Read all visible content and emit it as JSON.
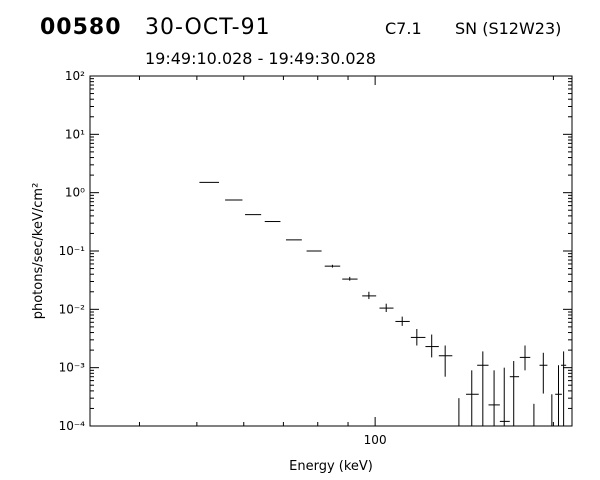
{
  "header": {
    "event_id": "00580",
    "date": "30-OCT-91",
    "goes_class": "C7.1",
    "location": "SN (S12W23)",
    "time_range": "19:49:10.028 - 19:49:30.028"
  },
  "chart_data": {
    "type": "scatter",
    "xlabel": "Energy (keV)",
    "ylabel": "photons/sec/keV/cm²",
    "xscale": "log",
    "yscale": "log",
    "xlim": [
      33,
      215
    ],
    "ylim": [
      0.0001,
      100
    ],
    "x_ticks": [
      {
        "value": 100,
        "label": "100"
      }
    ],
    "y_ticks": [
      {
        "value": 100,
        "label": "10²"
      },
      {
        "value": 10,
        "label": "10¹"
      },
      {
        "value": 1,
        "label": "10⁰"
      },
      {
        "value": 0.1,
        "label": "10⁻¹"
      },
      {
        "value": 0.01,
        "label": "10⁻²"
      },
      {
        "value": 0.001,
        "label": "10⁻³"
      },
      {
        "value": 0.0001,
        "label": "10⁻⁴"
      }
    ],
    "grid": false,
    "points": [
      {
        "x": 52.5,
        "xlo": 50.5,
        "xhi": 54.5,
        "y": 1.5,
        "ylo": 1.5,
        "yhi": 1.5
      },
      {
        "x": 57.7,
        "xlo": 55.8,
        "xhi": 59.7,
        "y": 0.75,
        "ylo": 0.75,
        "yhi": 0.75
      },
      {
        "x": 62.2,
        "xlo": 60.3,
        "xhi": 64.2,
        "y": 0.42,
        "ylo": 0.42,
        "yhi": 0.42
      },
      {
        "x": 67.1,
        "xlo": 65.1,
        "xhi": 69.2,
        "y": 0.32,
        "ylo": 0.32,
        "yhi": 0.32
      },
      {
        "x": 72.9,
        "xlo": 70.7,
        "xhi": 75.2,
        "y": 0.155,
        "ylo": 0.155,
        "yhi": 0.155
      },
      {
        "x": 78.9,
        "xlo": 76.6,
        "xhi": 81.2,
        "y": 0.1,
        "ylo": 0.1,
        "yhi": 0.1
      },
      {
        "x": 84.7,
        "xlo": 82.2,
        "xhi": 87.3,
        "y": 0.055,
        "ylo": 0.052,
        "yhi": 0.058
      },
      {
        "x": 90.6,
        "xlo": 88.0,
        "xhi": 93.4,
        "y": 0.033,
        "ylo": 0.031,
        "yhi": 0.036
      },
      {
        "x": 97.6,
        "xlo": 95.1,
        "xhi": 100.4,
        "y": 0.017,
        "ylo": 0.015,
        "yhi": 0.02
      },
      {
        "x": 104.4,
        "xlo": 101.7,
        "xhi": 107.4,
        "y": 0.0105,
        "ylo": 0.009,
        "yhi": 0.0125
      },
      {
        "x": 111.1,
        "xlo": 108.2,
        "xhi": 114.4,
        "y": 0.0062,
        "ylo": 0.0052,
        "yhi": 0.0075
      },
      {
        "x": 117.6,
        "xlo": 114.9,
        "xhi": 121.6,
        "y": 0.0033,
        "ylo": 0.0024,
        "yhi": 0.0046
      },
      {
        "x": 124.6,
        "xlo": 121.6,
        "xhi": 128.1,
        "y": 0.0023,
        "ylo": 0.0015,
        "yhi": 0.0037
      },
      {
        "x": 131.3,
        "xlo": 128.1,
        "xhi": 135.0,
        "y": 0.0016,
        "ylo": 0.0007,
        "yhi": 0.0024
      },
      {
        "x": 138.5,
        "xlo": 135.6,
        "xhi": 142.4,
        "y": 0.0001,
        "ylo": 0.0001,
        "yhi": 0.0003
      },
      {
        "x": 145.6,
        "xlo": 142.4,
        "xhi": 149.6,
        "y": 0.00035,
        "ylo": 0.0001,
        "yhi": 0.0009
      },
      {
        "x": 152.0,
        "xlo": 148.7,
        "xhi": 155.4,
        "y": 0.0011,
        "ylo": 0.0001,
        "yhi": 0.0019
      },
      {
        "x": 158.8,
        "xlo": 155.4,
        "xhi": 162.4,
        "y": 0.00023,
        "ylo": 0.0001,
        "yhi": 0.0009
      },
      {
        "x": 165.2,
        "xlo": 162.4,
        "xhi": 168.8,
        "y": 0.00012,
        "ylo": 0.0001,
        "yhi": 0.001
      },
      {
        "x": 171.4,
        "xlo": 168.8,
        "xhi": 175.0,
        "y": 0.0007,
        "ylo": 0.0001,
        "yhi": 0.0013
      },
      {
        "x": 179.1,
        "xlo": 175.5,
        "xhi": 182.8,
        "y": 0.0015,
        "ylo": 0.0009,
        "yhi": 0.0024
      },
      {
        "x": 185.4,
        "xlo": 183.0,
        "xhi": 187.9,
        "y": 0.0001,
        "ylo": 0.0001,
        "yhi": 0.00024
      },
      {
        "x": 192.3,
        "xlo": 189.5,
        "xhi": 195.4,
        "y": 0.0011,
        "ylo": 0.00036,
        "yhi": 0.0018
      },
      {
        "x": 198.8,
        "xlo": 195.4,
        "xhi": 202.2,
        "y": 0.0001,
        "ylo": 0.0001,
        "yhi": 0.00035
      },
      {
        "x": 204.0,
        "xlo": 201.4,
        "xhi": 206.7,
        "y": 0.00035,
        "ylo": 0.0001,
        "yhi": 0.0011
      },
      {
        "x": 208.1,
        "xlo": 206.0,
        "xhi": 210.2,
        "y": 0.0011,
        "ylo": 0.0001,
        "yhi": 0.0019
      }
    ]
  }
}
